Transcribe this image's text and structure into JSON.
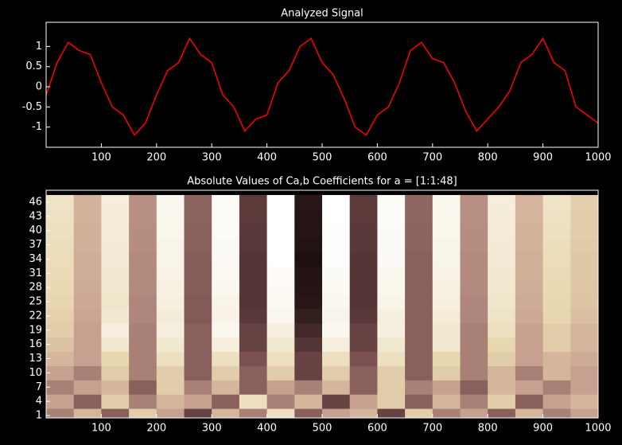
{
  "chart_data": [
    {
      "type": "line",
      "title": "Analyzed Signal",
      "color": "#ff0000",
      "x": [
        0,
        20,
        40,
        60,
        80,
        100,
        120,
        140,
        160,
        180,
        200,
        220,
        240,
        260,
        280,
        300,
        320,
        340,
        360,
        380,
        400,
        420,
        440,
        460,
        480,
        500,
        520,
        540,
        560,
        580,
        600,
        620,
        640,
        660,
        680,
        700,
        720,
        740,
        760,
        780,
        800,
        820,
        840,
        860,
        880,
        900,
        920,
        940,
        960,
        980,
        1000
      ],
      "values": [
        -0.2,
        0.6,
        1.1,
        0.9,
        0.8,
        0.1,
        -0.5,
        -0.7,
        -1.2,
        -0.9,
        -0.2,
        0.4,
        0.6,
        1.2,
        0.8,
        0.6,
        -0.2,
        -0.5,
        -1.1,
        -0.8,
        -0.7,
        0.1,
        0.4,
        1.0,
        1.2,
        0.6,
        0.3,
        -0.3,
        -1.0,
        -1.2,
        -0.7,
        -0.5,
        0.1,
        0.9,
        1.1,
        0.7,
        0.6,
        0.1,
        -0.6,
        -1.1,
        -0.8,
        -0.5,
        -0.1,
        0.6,
        0.8,
        1.2,
        0.6,
        0.4,
        -0.5,
        -0.7,
        -0.9
      ],
      "xlim": [
        0,
        1000
      ],
      "xticks": [
        100,
        200,
        300,
        400,
        500,
        600,
        700,
        800,
        900,
        1000
      ],
      "ylim": [
        -1.5,
        1.6
      ],
      "yticks": [
        -1,
        -0.5,
        0,
        0.5,
        1
      ]
    },
    {
      "type": "heatmap",
      "title": "Absolute Values of Ca,b Coefficients for a =  [1:1:48]",
      "colormap": [
        "#1e0f0f",
        "#7a5050",
        "#c8a090",
        "#e8d8b0",
        "#ffffff"
      ],
      "x": [
        25,
        75,
        125,
        175,
        225,
        275,
        325,
        375,
        425,
        475,
        525,
        575,
        625,
        675,
        725,
        775,
        825,
        875,
        925,
        975
      ],
      "y": [
        1,
        4,
        7,
        10,
        13,
        16,
        19,
        22,
        25,
        28,
        31,
        34,
        37,
        40,
        43,
        46
      ],
      "z": [
        [
          0.4,
          0.6,
          0.3,
          0.7,
          0.5,
          0.2,
          0.6,
          0.4,
          0.8,
          0.3,
          0.5,
          0.6,
          0.2,
          0.7,
          0.4,
          0.5,
          0.3,
          0.6,
          0.4,
          0.5
        ],
        [
          0.5,
          0.3,
          0.7,
          0.4,
          0.6,
          0.5,
          0.3,
          0.8,
          0.4,
          0.6,
          0.2,
          0.5,
          0.7,
          0.3,
          0.6,
          0.4,
          0.7,
          0.3,
          0.5,
          0.6
        ],
        [
          0.4,
          0.5,
          0.6,
          0.3,
          0.7,
          0.4,
          0.6,
          0.3,
          0.5,
          0.4,
          0.6,
          0.3,
          0.7,
          0.4,
          0.5,
          0.3,
          0.6,
          0.5,
          0.4,
          0.5
        ],
        [
          0.5,
          0.4,
          0.7,
          0.4,
          0.7,
          0.3,
          0.7,
          0.3,
          0.7,
          0.2,
          0.7,
          0.3,
          0.7,
          0.3,
          0.7,
          0.4,
          0.6,
          0.4,
          0.6,
          0.5
        ],
        [
          0.6,
          0.5,
          0.75,
          0.4,
          0.8,
          0.3,
          0.8,
          0.25,
          0.8,
          0.2,
          0.8,
          0.25,
          0.8,
          0.3,
          0.75,
          0.4,
          0.7,
          0.5,
          0.6,
          0.55
        ],
        [
          0.65,
          0.5,
          0.85,
          0.4,
          0.85,
          0.3,
          0.9,
          0.2,
          0.85,
          0.15,
          0.9,
          0.2,
          0.85,
          0.3,
          0.85,
          0.4,
          0.75,
          0.5,
          0.7,
          0.6
        ],
        [
          0.7,
          0.5,
          0.9,
          0.4,
          0.9,
          0.3,
          0.95,
          0.2,
          0.9,
          0.1,
          0.95,
          0.2,
          0.9,
          0.3,
          0.85,
          0.4,
          0.8,
          0.5,
          0.7,
          0.6
        ],
        [
          0.72,
          0.52,
          0.85,
          0.42,
          0.88,
          0.28,
          0.92,
          0.16,
          0.94,
          0.06,
          0.93,
          0.16,
          0.9,
          0.3,
          0.88,
          0.42,
          0.82,
          0.54,
          0.74,
          0.64
        ],
        [
          0.74,
          0.54,
          0.84,
          0.42,
          0.9,
          0.28,
          0.93,
          0.15,
          0.96,
          0.03,
          0.95,
          0.15,
          0.93,
          0.3,
          0.9,
          0.42,
          0.84,
          0.55,
          0.75,
          0.66
        ],
        [
          0.76,
          0.55,
          0.85,
          0.43,
          0.91,
          0.29,
          0.95,
          0.15,
          0.97,
          0.02,
          0.96,
          0.15,
          0.94,
          0.3,
          0.91,
          0.43,
          0.85,
          0.56,
          0.76,
          0.67
        ],
        [
          0.77,
          0.56,
          0.86,
          0.43,
          0.92,
          0.29,
          0.96,
          0.15,
          0.98,
          0.01,
          0.97,
          0.15,
          0.95,
          0.3,
          0.92,
          0.43,
          0.86,
          0.57,
          0.77,
          0.68
        ],
        [
          0.78,
          0.56,
          0.87,
          0.43,
          0.93,
          0.29,
          0.97,
          0.15,
          1.0,
          0.0,
          0.99,
          0.15,
          0.97,
          0.3,
          0.93,
          0.43,
          0.87,
          0.57,
          0.78,
          0.68
        ],
        [
          0.79,
          0.57,
          0.87,
          0.44,
          0.93,
          0.3,
          0.97,
          0.16,
          1.0,
          0.01,
          0.99,
          0.16,
          0.97,
          0.31,
          0.93,
          0.44,
          0.87,
          0.58,
          0.79,
          0.69
        ],
        [
          0.8,
          0.57,
          0.88,
          0.44,
          0.94,
          0.3,
          0.98,
          0.16,
          1.0,
          0.02,
          0.99,
          0.16,
          0.97,
          0.31,
          0.94,
          0.44,
          0.88,
          0.58,
          0.8,
          0.7
        ],
        [
          0.81,
          0.58,
          0.88,
          0.45,
          0.94,
          0.31,
          0.98,
          0.17,
          1.0,
          0.02,
          1.0,
          0.17,
          0.98,
          0.32,
          0.94,
          0.45,
          0.88,
          0.59,
          0.81,
          0.7
        ],
        [
          0.82,
          0.58,
          0.89,
          0.45,
          0.95,
          0.31,
          0.98,
          0.17,
          1.0,
          0.03,
          1.0,
          0.17,
          0.98,
          0.32,
          0.95,
          0.45,
          0.89,
          0.59,
          0.82,
          0.71
        ]
      ],
      "xlim": [
        0,
        1000
      ],
      "xticks": [
        100,
        200,
        300,
        400,
        500,
        600,
        700,
        800,
        900,
        1000
      ],
      "ylim": [
        0.5,
        48.5
      ],
      "yticks": [
        1,
        4,
        7,
        10,
        13,
        16,
        19,
        22,
        25,
        28,
        31,
        34,
        37,
        40,
        43,
        46
      ]
    }
  ]
}
